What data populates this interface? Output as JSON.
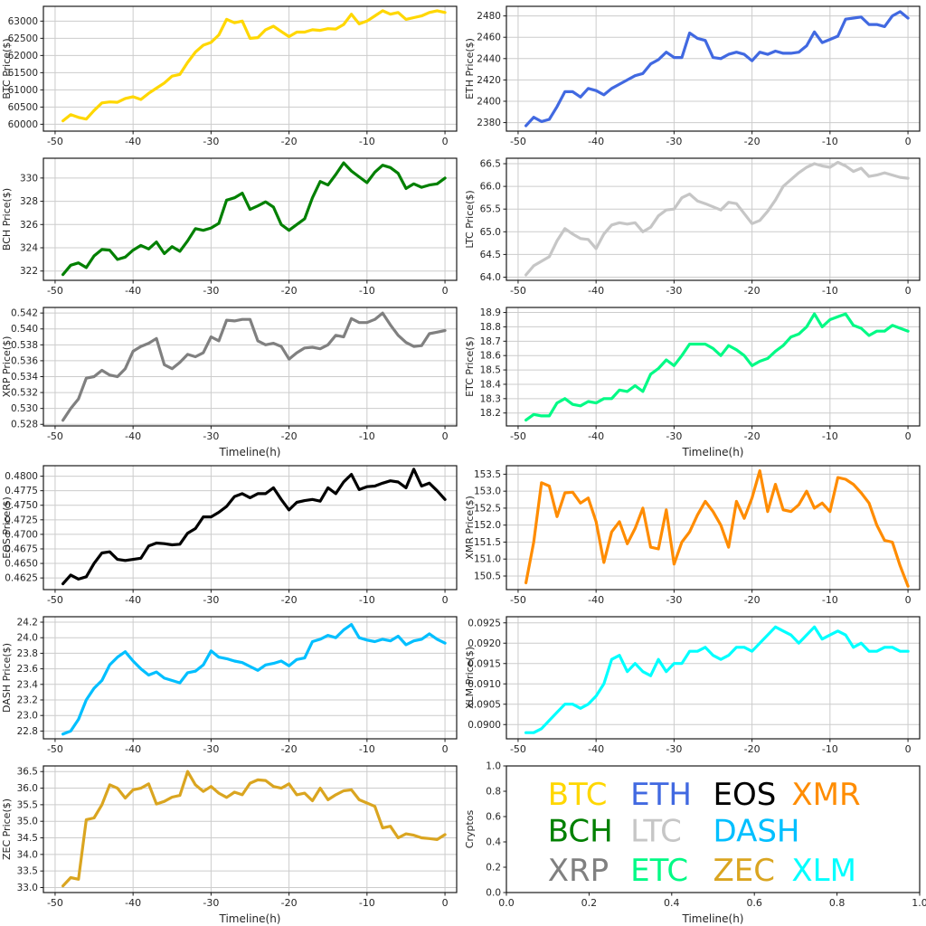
{
  "figure": {
    "background": "#ffffff",
    "grid_color": "#cccccc",
    "spine_color": "#1a1a1a",
    "tick_text_color": "#262626",
    "x_axis_label": "Timeline(h)",
    "legend_axis_label": "Cryptos"
  },
  "chart_data": [
    {
      "type": "line",
      "name": "BTC",
      "color": "#FFD700",
      "ylabel": "BTC Price($)",
      "xlabel": "",
      "xlim": [
        -51.5,
        1.5
      ],
      "ylim": [
        59800,
        63430
      ],
      "xticks": [
        -50,
        -40,
        -30,
        -20,
        -10,
        0
      ],
      "xtick_labels": [
        "-50",
        "-40",
        "-30",
        "-20",
        "-10",
        "0"
      ],
      "yticks": [
        60000,
        60500,
        61000,
        61500,
        62000,
        62500,
        63000
      ],
      "ytick_labels": [
        "60000",
        "60500",
        "61000",
        "61500",
        "62000",
        "62500",
        "63000"
      ],
      "x_start": -49,
      "x_step": 1,
      "values": [
        60100,
        60280,
        60200,
        60150,
        60400,
        60620,
        60650,
        60640,
        60750,
        60800,
        60720,
        60900,
        61050,
        61200,
        61400,
        61450,
        61800,
        62100,
        62300,
        62380,
        62600,
        63050,
        62950,
        63000,
        62500,
        62520,
        62750,
        62850,
        62700,
        62550,
        62680,
        62680,
        62750,
        62730,
        62780,
        62770,
        62900,
        63200,
        62920,
        63000,
        63150,
        63300,
        63200,
        63250,
        63050,
        63100,
        63150,
        63250,
        63300,
        63250
      ]
    },
    {
      "type": "line",
      "name": "ETH",
      "color": "#4169E1",
      "ylabel": "ETH  Price($)",
      "xlabel": "",
      "xlim": [
        -51.5,
        1.5
      ],
      "ylim": [
        2372,
        2489
      ],
      "xticks": [
        -50,
        -40,
        -30,
        -20,
        -10,
        0
      ],
      "xtick_labels": [
        "-50",
        "-40",
        "-30",
        "-20",
        "-10",
        "0"
      ],
      "yticks": [
        2380,
        2400,
        2420,
        2440,
        2460,
        2480
      ],
      "ytick_labels": [
        "2380",
        "2400",
        "2420",
        "2440",
        "2460",
        "2480"
      ],
      "x_start": -49,
      "x_step": 1,
      "values": [
        2377,
        2385,
        2381,
        2383,
        2395,
        2409,
        2409,
        2404,
        2412,
        2410,
        2406,
        2412,
        2416,
        2420,
        2424,
        2426,
        2435,
        2439,
        2446,
        2441,
        2441,
        2464,
        2459,
        2457,
        2441,
        2440,
        2444,
        2446,
        2444,
        2438,
        2446,
        2444,
        2447,
        2445,
        2445,
        2446,
        2452,
        2465,
        2455,
        2458,
        2461,
        2477,
        2478,
        2479,
        2472,
        2472,
        2470,
        2480,
        2484,
        2478
      ]
    },
    {
      "type": "line",
      "name": "BCH",
      "color": "#008000",
      "ylabel": "BCH Price($)",
      "xlabel": "",
      "xlim": [
        -51.5,
        1.5
      ],
      "ylim": [
        321.2,
        331.7
      ],
      "xticks": [
        -50,
        -40,
        -30,
        -20,
        -10,
        0
      ],
      "xtick_labels": [
        "-50",
        "-40",
        "-30",
        "-20",
        "-10",
        "0"
      ],
      "yticks": [
        322,
        324,
        326,
        328,
        330
      ],
      "ytick_labels": [
        "322",
        "324",
        "326",
        "328",
        "330"
      ],
      "x_start": -49,
      "x_step": 1,
      "values": [
        321.7,
        322.5,
        322.7,
        322.3,
        323.3,
        323.85,
        323.8,
        323.0,
        323.2,
        323.8,
        324.2,
        323.9,
        324.5,
        323.5,
        324.1,
        323.7,
        324.6,
        325.65,
        325.5,
        325.7,
        326.1,
        328.1,
        328.3,
        328.7,
        327.3,
        327.6,
        327.95,
        327.5,
        326.0,
        325.5,
        326.0,
        326.5,
        328.3,
        329.7,
        329.4,
        330.3,
        331.3,
        330.6,
        330.1,
        329.6,
        330.5,
        331.1,
        330.9,
        330.4,
        329.1,
        329.5,
        329.2,
        329.4,
        329.5,
        330.0
      ]
    },
    {
      "type": "line",
      "name": "LTC",
      "color": "#C6C6C6",
      "ylabel": "LTC  Price($)",
      "xlabel": "",
      "xlim": [
        -51.5,
        1.5
      ],
      "ylim": [
        63.93,
        66.62
      ],
      "xticks": [
        -50,
        -40,
        -30,
        -20,
        -10,
        0
      ],
      "xtick_labels": [
        "-50",
        "-40",
        "-30",
        "-20",
        "-10",
        "0"
      ],
      "yticks": [
        64.0,
        64.5,
        65.0,
        65.5,
        66.0,
        66.5
      ],
      "ytick_labels": [
        "64.0",
        "64.5",
        "65.0",
        "65.5",
        "66.0",
        "66.5"
      ],
      "x_start": -49,
      "x_step": 1,
      "values": [
        64.05,
        64.25,
        64.35,
        64.45,
        64.8,
        65.07,
        64.95,
        64.85,
        64.83,
        64.63,
        64.95,
        65.15,
        65.2,
        65.17,
        65.2,
        65.0,
        65.1,
        65.35,
        65.48,
        65.5,
        65.75,
        65.83,
        65.68,
        65.62,
        65.55,
        65.48,
        65.65,
        65.62,
        65.4,
        65.18,
        65.25,
        65.45,
        65.7,
        66.0,
        66.15,
        66.3,
        66.42,
        66.5,
        66.45,
        66.42,
        66.53,
        66.45,
        66.33,
        66.4,
        66.22,
        66.25,
        66.3,
        66.25,
        66.2,
        66.18
      ]
    },
    {
      "type": "line",
      "name": "XRP",
      "color": "#808080",
      "ylabel": "XRP Price($)",
      "xlabel": "Timeline(h)",
      "xlim": [
        -51.5,
        1.5
      ],
      "ylim": [
        0.5278,
        0.5427
      ],
      "xticks": [
        -50,
        -40,
        -30,
        -20,
        -10,
        0
      ],
      "xtick_labels": [
        "-50",
        "-40",
        "-30",
        "-20",
        "-10",
        "0"
      ],
      "yticks": [
        0.528,
        0.53,
        0.532,
        0.534,
        0.536,
        0.538,
        0.54,
        0.542
      ],
      "ytick_labels": [
        "0.528",
        "0.530",
        "0.532",
        "0.534",
        "0.536",
        "0.538",
        "0.540",
        "0.542"
      ],
      "x_start": -49,
      "x_step": 1,
      "values": [
        0.5285,
        0.53,
        0.5312,
        0.5338,
        0.534,
        0.5348,
        0.5342,
        0.534,
        0.535,
        0.5372,
        0.5378,
        0.5382,
        0.5388,
        0.5355,
        0.535,
        0.5358,
        0.5368,
        0.5365,
        0.537,
        0.539,
        0.5385,
        0.5411,
        0.541,
        0.5412,
        0.5412,
        0.5385,
        0.538,
        0.5382,
        0.5378,
        0.5362,
        0.537,
        0.5376,
        0.5377,
        0.5375,
        0.538,
        0.5392,
        0.539,
        0.5413,
        0.5408,
        0.5408,
        0.5412,
        0.542,
        0.5405,
        0.5392,
        0.5383,
        0.5378,
        0.5379,
        0.5394,
        0.5396,
        0.5398
      ]
    },
    {
      "type": "line",
      "name": "ETC",
      "color": "#00FA85",
      "ylabel": "ETC  Price($)",
      "xlabel": "Timeline(h)",
      "xlim": [
        -51.5,
        1.5
      ],
      "ylim": [
        18.11,
        18.935
      ],
      "xticks": [
        -50,
        -40,
        -30,
        -20,
        -10,
        0
      ],
      "xtick_labels": [
        "-50",
        "-40",
        "-30",
        "-20",
        "-10",
        "0"
      ],
      "yticks": [
        18.2,
        18.3,
        18.4,
        18.5,
        18.6,
        18.7,
        18.8,
        18.9
      ],
      "ytick_labels": [
        "18.2",
        "18.3",
        "18.4",
        "18.5",
        "18.6",
        "18.7",
        "18.8",
        "18.9"
      ],
      "x_start": -49,
      "x_step": 1,
      "values": [
        18.15,
        18.19,
        18.18,
        18.18,
        18.27,
        18.3,
        18.26,
        18.25,
        18.28,
        18.27,
        18.3,
        18.3,
        18.36,
        18.35,
        18.39,
        18.35,
        18.47,
        18.51,
        18.57,
        18.53,
        18.6,
        18.68,
        18.68,
        18.68,
        18.65,
        18.6,
        18.67,
        18.64,
        18.6,
        18.53,
        18.56,
        18.58,
        18.63,
        18.67,
        18.73,
        18.75,
        18.8,
        18.89,
        18.8,
        18.85,
        18.87,
        18.89,
        18.81,
        18.79,
        18.74,
        18.77,
        18.77,
        18.81,
        18.79,
        18.77
      ]
    },
    {
      "type": "line",
      "name": "EOS",
      "color": "#000000",
      "ylabel": "EOS  Price($)",
      "xlabel": "",
      "xlim": [
        -51.5,
        1.5
      ],
      "ylim": [
        0.4605,
        0.4818
      ],
      "xticks": [
        -50,
        -40,
        -30,
        -20,
        -10,
        0
      ],
      "xtick_labels": [
        "-50",
        "-40",
        "-30",
        "-20",
        "-10",
        "0"
      ],
      "yticks": [
        0.4625,
        0.465,
        0.4675,
        0.47,
        0.4725,
        0.475,
        0.4775,
        0.48
      ],
      "ytick_labels": [
        "0.4625",
        "0.4650",
        "0.4675",
        "0.4700",
        "0.4725",
        "0.4750",
        "0.4775",
        "0.4800"
      ],
      "x_start": -49,
      "x_step": 1,
      "values": [
        0.4615,
        0.463,
        0.4623,
        0.4627,
        0.465,
        0.4668,
        0.467,
        0.4657,
        0.4655,
        0.4657,
        0.4659,
        0.468,
        0.4685,
        0.4684,
        0.4682,
        0.4683,
        0.4702,
        0.471,
        0.473,
        0.473,
        0.4738,
        0.4748,
        0.4765,
        0.477,
        0.4763,
        0.477,
        0.477,
        0.478,
        0.476,
        0.4742,
        0.4755,
        0.4758,
        0.476,
        0.4757,
        0.478,
        0.477,
        0.479,
        0.4803,
        0.4777,
        0.4782,
        0.4783,
        0.4788,
        0.4792,
        0.479,
        0.478,
        0.4812,
        0.4783,
        0.4788,
        0.4775,
        0.476
      ]
    },
    {
      "type": "line",
      "name": "XMR",
      "color": "#FF8C00",
      "ylabel": "XMR  Price($)",
      "xlabel": "",
      "xlim": [
        -51.5,
        1.5
      ],
      "ylim": [
        150.1,
        153.75
      ],
      "xticks": [
        -50,
        -40,
        -30,
        -20,
        -10,
        0
      ],
      "xtick_labels": [
        "-50",
        "-40",
        "-30",
        "-20",
        "-10",
        "0"
      ],
      "yticks": [
        150.5,
        151.0,
        151.5,
        152.0,
        152.5,
        153.0,
        153.5
      ],
      "ytick_labels": [
        "150.5",
        "151.0",
        "151.5",
        "152.0",
        "152.5",
        "153.0",
        "153.5"
      ],
      "x_start": -49,
      "x_step": 1,
      "values": [
        150.3,
        151.5,
        153.25,
        153.15,
        152.25,
        152.95,
        152.97,
        152.65,
        152.8,
        152.1,
        150.9,
        151.8,
        152.1,
        151.45,
        151.9,
        152.5,
        151.35,
        151.3,
        152.45,
        150.85,
        151.5,
        151.8,
        152.3,
        152.7,
        152.4,
        152.0,
        151.35,
        152.7,
        152.2,
        152.8,
        153.6,
        152.4,
        153.2,
        152.45,
        152.4,
        152.6,
        153.0,
        152.5,
        152.65,
        152.4,
        153.4,
        153.35,
        153.2,
        152.95,
        152.65,
        152.0,
        151.55,
        151.5,
        150.8,
        150.2
      ]
    },
    {
      "type": "line",
      "name": "DASH",
      "color": "#00BFFF",
      "ylabel": "DASH Price($)",
      "xlabel": "",
      "xlim": [
        -51.5,
        1.5
      ],
      "ylim": [
        22.7,
        24.27
      ],
      "xticks": [
        -50,
        -40,
        -30,
        -20,
        -10,
        0
      ],
      "xtick_labels": [
        "-50",
        "-40",
        "-30",
        "-20",
        "-10",
        "0"
      ],
      "yticks": [
        22.8,
        23.0,
        23.2,
        23.4,
        23.6,
        23.8,
        24.0,
        24.2
      ],
      "ytick_labels": [
        "22.8",
        "23.0",
        "23.2",
        "23.4",
        "23.6",
        "23.8",
        "24.0",
        "24.2"
      ],
      "x_start": -49,
      "x_step": 1,
      "values": [
        22.76,
        22.8,
        22.95,
        23.2,
        23.35,
        23.45,
        23.65,
        23.75,
        23.82,
        23.7,
        23.6,
        23.52,
        23.56,
        23.48,
        23.45,
        23.42,
        23.55,
        23.57,
        23.65,
        23.83,
        23.75,
        23.73,
        23.7,
        23.68,
        23.63,
        23.58,
        23.65,
        23.67,
        23.7,
        23.64,
        23.72,
        23.74,
        23.95,
        23.98,
        24.03,
        24.0,
        24.1,
        24.17,
        24.0,
        23.97,
        23.95,
        23.98,
        23.96,
        24.02,
        23.91,
        23.96,
        23.98,
        24.05,
        23.98,
        23.93
      ]
    },
    {
      "type": "line",
      "name": "XLM",
      "color": "#00FFFF",
      "ylabel": "XLM Price($)",
      "xlabel": "",
      "xlim": [
        -51.5,
        1.5
      ],
      "ylim": [
        0.08965,
        0.09265
      ],
      "xticks": [
        -50,
        -40,
        -30,
        -20,
        -10,
        0
      ],
      "xtick_labels": [
        "-50",
        "-40",
        "-30",
        "-20",
        "-10",
        "0"
      ],
      "yticks": [
        0.09,
        0.0905,
        0.091,
        0.0915,
        0.092,
        0.0925
      ],
      "ytick_labels": [
        "0.0900",
        "0.0905",
        "0.0910",
        "0.0915",
        "0.0920",
        "0.0925"
      ],
      "x_start": -49,
      "x_step": 1,
      "values": [
        0.0898,
        0.0898,
        0.0899,
        0.0901,
        0.0903,
        0.0905,
        0.0905,
        0.0904,
        0.0905,
        0.0907,
        0.091,
        0.0916,
        0.0917,
        0.0913,
        0.0915,
        0.0913,
        0.0912,
        0.0916,
        0.0913,
        0.0915,
        0.0915,
        0.0918,
        0.0918,
        0.0919,
        0.0917,
        0.0916,
        0.0917,
        0.0919,
        0.0919,
        0.0918,
        0.092,
        0.0922,
        0.0924,
        0.0923,
        0.0922,
        0.092,
        0.0922,
        0.0924,
        0.0921,
        0.0922,
        0.0923,
        0.0922,
        0.0919,
        0.092,
        0.0918,
        0.0918,
        0.0919,
        0.0919,
        0.0918,
        0.0918
      ]
    },
    {
      "type": "line",
      "name": "ZEC",
      "color": "#DAA520",
      "ylabel": "ZEC Price($)",
      "xlabel": "Timeline(h)",
      "xlim": [
        -51.5,
        1.5
      ],
      "ylim": [
        32.85,
        36.67
      ],
      "xticks": [
        -50,
        -40,
        -30,
        -20,
        -10,
        0
      ],
      "xtick_labels": [
        "-50",
        "-40",
        "-30",
        "-20",
        "-10",
        "0"
      ],
      "yticks": [
        33.0,
        33.5,
        34.0,
        34.5,
        35.0,
        35.5,
        36.0,
        36.5
      ],
      "ytick_labels": [
        "33.0",
        "33.5",
        "34.0",
        "34.5",
        "35.0",
        "35.5",
        "36.0",
        "36.5"
      ],
      "x_start": -49,
      "x_step": 1,
      "values": [
        33.05,
        33.3,
        33.25,
        35.05,
        35.1,
        35.5,
        36.1,
        36.0,
        35.7,
        35.95,
        36.0,
        36.13,
        35.52,
        35.6,
        35.73,
        35.78,
        36.5,
        36.1,
        35.9,
        36.05,
        35.85,
        35.72,
        35.88,
        35.8,
        36.15,
        36.25,
        36.23,
        36.05,
        36.0,
        36.13,
        35.8,
        35.85,
        35.62,
        36.0,
        35.65,
        35.8,
        35.92,
        35.95,
        35.65,
        35.55,
        35.45,
        34.8,
        34.85,
        34.5,
        34.62,
        34.58,
        34.5,
        34.48,
        34.45,
        34.6
      ]
    },
    {
      "type": "legend",
      "name": "LEGEND",
      "grid": false,
      "ylabel": "Cryptos",
      "xlabel": "Timeline(h)",
      "xlim": [
        0,
        1
      ],
      "ylim": [
        0,
        1
      ],
      "xticks": [
        0.0,
        0.2,
        0.4,
        0.6,
        0.8,
        1.0
      ],
      "xtick_labels": [
        "0.0",
        "0.2",
        "0.4",
        "0.6",
        "0.8",
        "1.0"
      ],
      "yticks": [
        0.0,
        0.2,
        0.4,
        0.6,
        0.8,
        1.0
      ],
      "ytick_labels": [
        "0.0",
        "0.2",
        "0.4",
        "0.6",
        "0.8",
        "1.0"
      ],
      "entries": [
        {
          "label": "BTC",
          "color": "#FFD700",
          "x": 0.1,
          "y": 0.78
        },
        {
          "label": "ETH",
          "color": "#4169E1",
          "x": 0.3,
          "y": 0.78
        },
        {
          "label": "EOS",
          "color": "#000000",
          "x": 0.5,
          "y": 0.78
        },
        {
          "label": "XMR",
          "color": "#FF8C00",
          "x": 0.69,
          "y": 0.78
        },
        {
          "label": "BCH",
          "color": "#008000",
          "x": 0.1,
          "y": 0.49
        },
        {
          "label": "LTC",
          "color": "#C6C6C6",
          "x": 0.3,
          "y": 0.49
        },
        {
          "label": "DASH",
          "color": "#00BFFF",
          "x": 0.5,
          "y": 0.49
        },
        {
          "label": "XRP",
          "color": "#808080",
          "x": 0.1,
          "y": 0.18
        },
        {
          "label": "ETC",
          "color": "#00FA85",
          "x": 0.3,
          "y": 0.18
        },
        {
          "label": "ZEC",
          "color": "#DAA520",
          "x": 0.5,
          "y": 0.18
        },
        {
          "label": "XLM",
          "color": "#00FFFF",
          "x": 0.69,
          "y": 0.18
        }
      ]
    }
  ]
}
